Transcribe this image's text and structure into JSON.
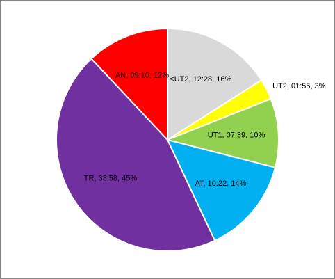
{
  "chart_data": {
    "type": "pie",
    "categories": [
      "<UT2",
      "UT2",
      "UT1",
      "AT",
      "TR",
      "AN"
    ],
    "values": [
      16,
      3,
      10,
      14,
      45,
      12
    ],
    "value_labels": [
      "<UT2, 12:28, 16%",
      "UT2, 01:55, 3%",
      "UT1, 07:39, 10%",
      "AT, 10:22, 14%",
      "TR, 33:58, 45%",
      "AN, 09:10, 12%"
    ],
    "colors": [
      "#d9d9d9",
      "#ffff00",
      "#92d050",
      "#00b0f0",
      "#7030a0",
      "#ff0000"
    ]
  }
}
